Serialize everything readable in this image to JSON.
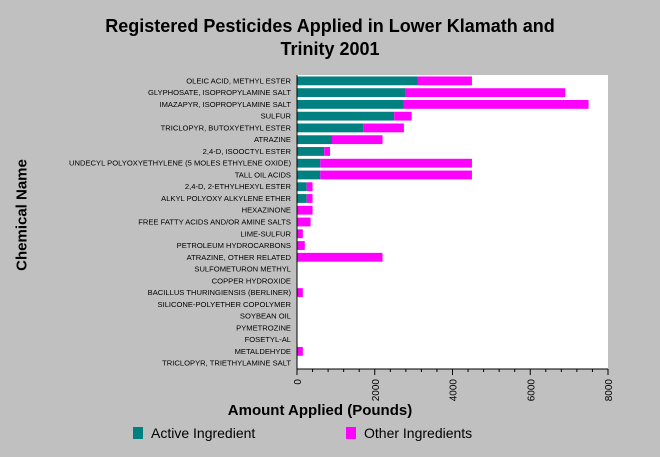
{
  "chart_data": {
    "type": "bar",
    "orientation": "horizontal",
    "stacked": true,
    "title": "Registered Pesticides Applied in Lower Klamath and Trinity 2001",
    "xlabel": "Amount Applied (Pounds)",
    "ylabel": "Chemical Name",
    "xlim": [
      0,
      8000
    ],
    "xticks": [
      "0",
      "2000",
      "4000",
      "6000",
      "8000"
    ],
    "grid": false,
    "legend": "bottom",
    "categories": [
      "OLEIC ACID, METHYL ESTER",
      "GLYPHOSATE, ISOPROPYLAMINE SALT",
      "IMAZAPYR, ISOPROPYLAMINE SALT",
      "SULFUR",
      "TRICLOPYR, BUTOXYETHYL ESTER",
      "ATRAZINE",
      "2,4-D, ISOOCTYL ESTER",
      "UNDECYL POLYOXYETHYLENE (5 MOLES ETHYLENE OXIDE)",
      "TALL OIL ACIDS",
      "2,4-D, 2-ETHYLHEXYL ESTER",
      "ALKYL POLYOXY ALKYLENE ETHER",
      "HEXAZINONE",
      "FREE FATTY ACIDS AND/OR AMINE SALTS",
      "LIME-SULFUR",
      "PETROLEUM HYDROCARBONS",
      "ATRAZINE, OTHER RELATED",
      "SULFOMETURON METHYL",
      "COPPER HYDROXIDE",
      "BACILLUS THURINGIENSIS (BERLINER)",
      "SILICONE-POLYETHER COPOLYMER",
      "SOYBEAN OIL",
      "PYMETROZINE",
      "FOSETYL-AL",
      "METALDEHYDE",
      "TRICLOPYR, TRIETHYLAMINE SALT"
    ],
    "series": [
      {
        "name": "Active Ingredient",
        "color": "#008080",
        "values": [
          3100,
          2800,
          2750,
          2500,
          1700,
          900,
          700,
          600,
          600,
          250,
          250,
          0,
          0,
          0,
          0,
          0,
          0,
          0,
          0,
          0,
          0,
          0,
          0,
          0,
          0
        ]
      },
      {
        "name": "Other Ingredients",
        "color": "#ff00ff",
        "values": [
          1400,
          4100,
          4750,
          450,
          1050,
          1300,
          150,
          3900,
          3900,
          150,
          150,
          400,
          350,
          150,
          200,
          2200,
          0,
          0,
          150,
          0,
          0,
          0,
          0,
          150,
          0
        ]
      }
    ]
  }
}
